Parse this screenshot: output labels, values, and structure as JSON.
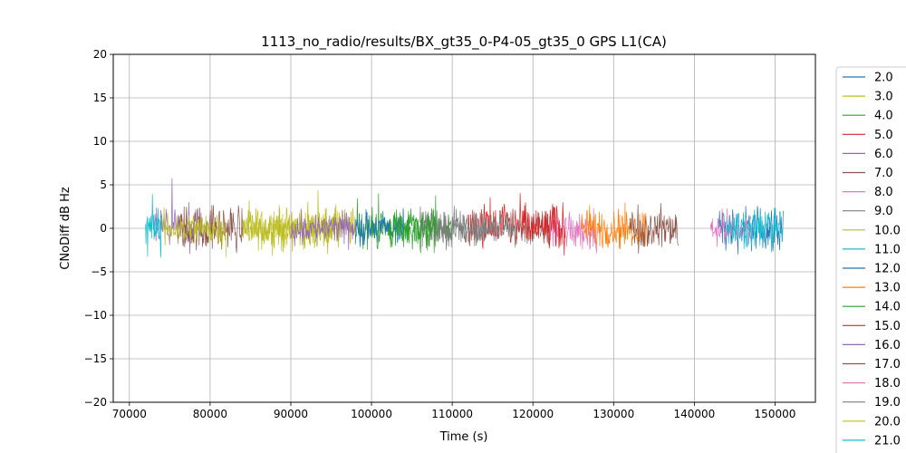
{
  "chart_data": {
    "type": "line",
    "title": "1113_no_radio/results/BX_gt35_0-P4-05_gt35_0 GPS L1(CA)",
    "xlabel": "Time (s)",
    "ylabel": "CNoDiff dB Hz",
    "xlim": [
      68000,
      155000
    ],
    "ylim": [
      -20,
      20
    ],
    "x_ticks": [
      70000,
      80000,
      90000,
      100000,
      110000,
      120000,
      130000,
      140000,
      150000
    ],
    "y_ticks": [
      -20,
      -15,
      -10,
      -5,
      0,
      5,
      10,
      15,
      20
    ],
    "grid": true,
    "legend_position": "outside right",
    "series": [
      {
        "name": "2.0",
        "color": "#1f77b4",
        "x_range": [
          143000,
          151000
        ],
        "amplitude": 2.0,
        "values": []
      },
      {
        "name": "3.0",
        "color": "#bcbd22",
        "x_range": [
          84000,
          98000
        ],
        "amplitude": 1.8,
        "values": []
      },
      {
        "name": "4.0",
        "color": "#2ca02c",
        "x_range": [
          98000,
          108000
        ],
        "amplitude": 1.8,
        "values": []
      },
      {
        "name": "5.0",
        "color": "#d62728",
        "x_range": [
          112000,
          118000
        ],
        "amplitude": 2.0,
        "values": []
      },
      {
        "name": "6.0",
        "color": "#9467bd",
        "x_range": [
          73000,
          79000
        ],
        "amplitude": 1.6,
        "values": []
      },
      {
        "name": "7.0",
        "color": "#8c564b",
        "x_range": [
          76000,
          84000
        ],
        "amplitude": 2.0,
        "values": []
      },
      {
        "name": "8.0",
        "color": "#e377c2",
        "x_range": [
          122000,
          128000
        ],
        "amplitude": 1.8,
        "values": []
      },
      {
        "name": "9.0",
        "color": "#7f7f7f",
        "x_range": [
          106000,
          122000
        ],
        "amplitude": 1.6,
        "values": []
      },
      {
        "name": "10.0",
        "color": "#bcbd22",
        "x_range": [
          84000,
          96000
        ],
        "amplitude": 1.5,
        "values": []
      },
      {
        "name": "11.0",
        "color": "#17becf",
        "x_range": [
          72000,
          74000
        ],
        "amplitude": 2.2,
        "values": []
      },
      {
        "name": "12.0",
        "color": "#1f77b4",
        "x_range": [
          98000,
          104000
        ],
        "amplitude": 1.5,
        "values": []
      },
      {
        "name": "13.0",
        "color": "#ff7f0e",
        "x_range": [
          126000,
          134000
        ],
        "amplitude": 1.8,
        "values": []
      },
      {
        "name": "14.0",
        "color": "#2ca02c",
        "x_range": [
          102000,
          110000
        ],
        "amplitude": 1.6,
        "values": []
      },
      {
        "name": "15.0",
        "color": "#d62728",
        "x_range": [
          118000,
          124000
        ],
        "amplitude": 2.2,
        "values": []
      },
      {
        "name": "16.0",
        "color": "#9467bd",
        "x_range": [
          90000,
          98000
        ],
        "amplitude": 1.4,
        "values": []
      },
      {
        "name": "17.0",
        "color": "#8c564b",
        "x_range": [
          132000,
          138000
        ],
        "amplitude": 1.8,
        "values": []
      },
      {
        "name": "18.0",
        "color": "#e377c2",
        "x_range": [
          142000,
          147000
        ],
        "amplitude": 1.5,
        "values": []
      },
      {
        "name": "19.0",
        "color": "#7f7f7f",
        "x_range": [
          108000,
          114000
        ],
        "amplitude": 1.5,
        "values": []
      },
      {
        "name": "20.0",
        "color": "#bcbd22",
        "x_range": [
          74000,
          82000
        ],
        "amplitude": 1.5,
        "values": []
      },
      {
        "name": "21.0",
        "color": "#17becf",
        "x_range": [
          144000,
          151000
        ],
        "amplitude": 1.8,
        "values": []
      }
    ],
    "note_values": "Dense noisy traces centred near 0 dB Hz; per-sample values not individually legible."
  }
}
